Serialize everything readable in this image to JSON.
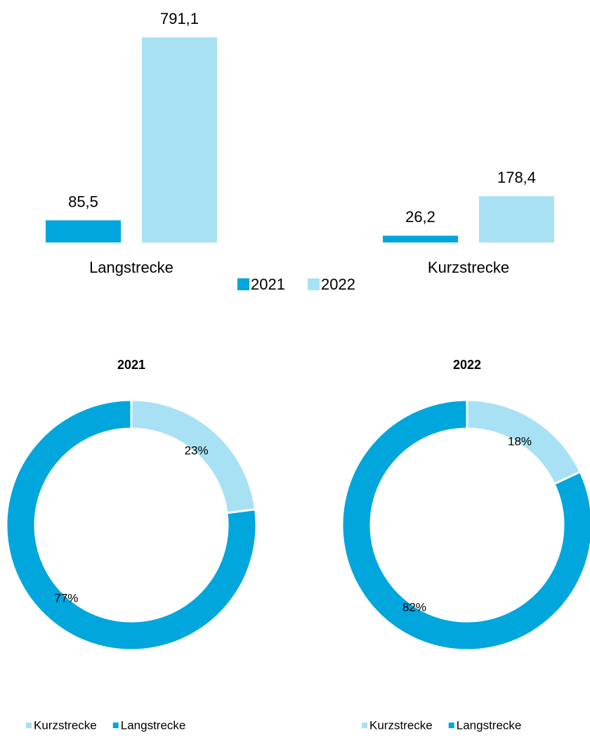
{
  "chart_data": [
    {
      "type": "bar",
      "categories": [
        "Langstrecke",
        "Kurzstrecke"
      ],
      "series": [
        {
          "name": "2021",
          "color": "#00a6dc",
          "values": [
            85.5,
            26.2
          ],
          "value_labels": [
            "85,5",
            "26,2"
          ]
        },
        {
          "name": "2022",
          "color": "#a8e1f3",
          "values": [
            791.1,
            178.4
          ],
          "value_labels": [
            "791,1",
            "178,4"
          ]
        }
      ],
      "ylim": [
        0,
        900
      ],
      "legend": "bottom"
    },
    {
      "type": "donut",
      "title": "2021",
      "categories": [
        "Kurzstrecke",
        "Langstrecke"
      ],
      "values": [
        23,
        77
      ],
      "value_labels": [
        "23%",
        "77%"
      ],
      "colors": [
        "#a8e1f3",
        "#00a6dc"
      ],
      "legend": "bottom"
    },
    {
      "type": "donut",
      "title": "2022",
      "categories": [
        "Kurzstrecke",
        "Langstrecke"
      ],
      "values": [
        18,
        82
      ],
      "value_labels": [
        "18%",
        "82%"
      ],
      "colors": [
        "#a8e1f3",
        "#00a6dc"
      ],
      "legend": "bottom"
    }
  ]
}
